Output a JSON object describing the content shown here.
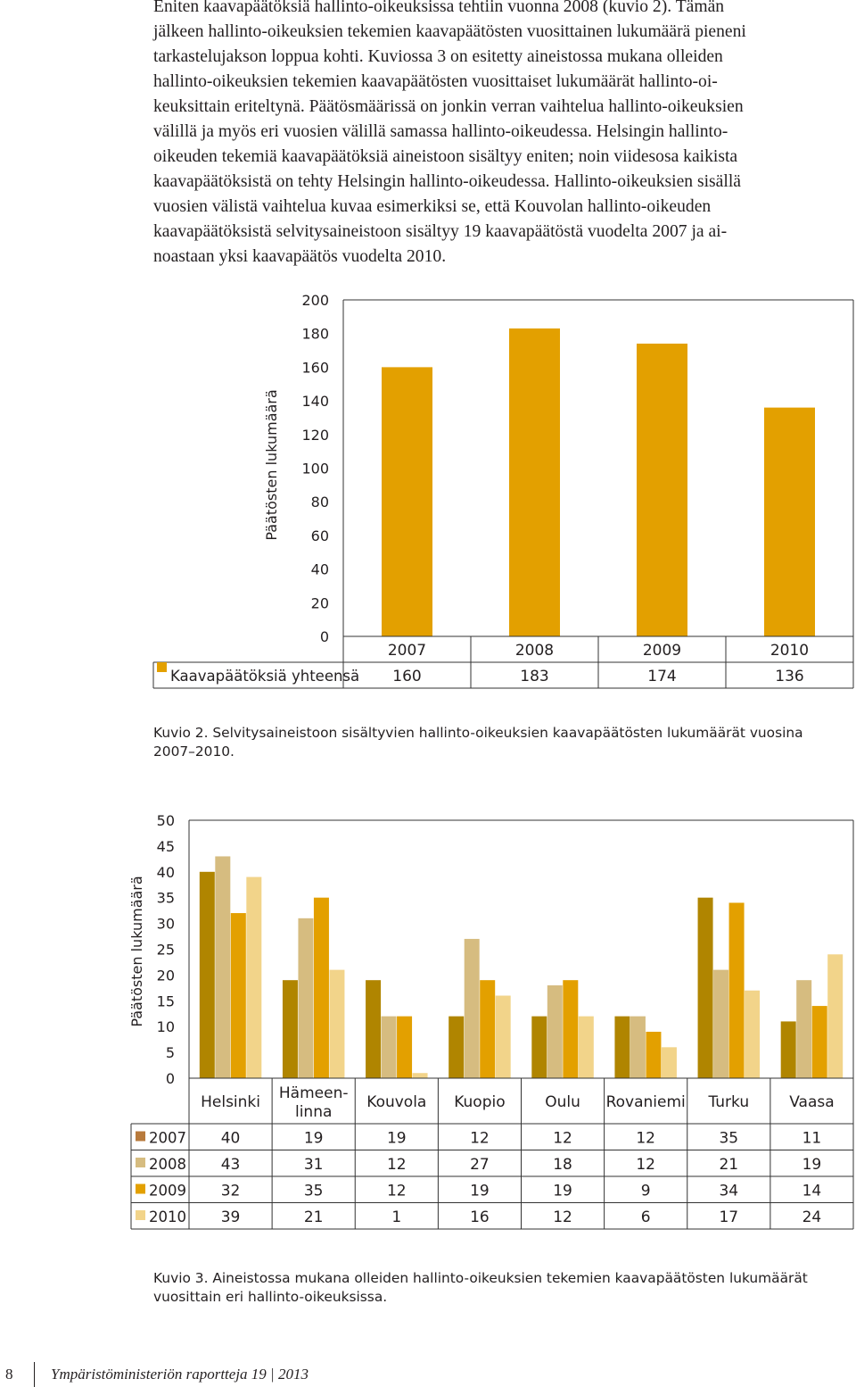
{
  "body_lines": [
    "Eniten kaavapäätöksiä hallinto-oikeuksissa tehtiin vuonna 2008 (kuvio 2). Tämän",
    "jälkeen hallinto-oikeuksien tekemien kaavapäätösten vuosittainen lukumäärä pieneni",
    "tarkastelujakson loppua kohti. Kuviossa 3 on esitetty aineistossa mukana olleiden",
    "hallinto-oikeuksien tekemien kaavapäätösten vuosittaiset lukumäärät hallinto-oi-",
    "keuksittain eriteltynä. Päätösmäärissä on jonkin verran vaihtelua hallinto-oikeuksien",
    "välillä ja myös eri vuosien välillä samassa hallinto-oikeudessa. Helsingin hallinto-",
    "oikeuden tekemiä kaavapäätöksiä aineistoon sisältyy eniten; noin viidesosa kaikista",
    "kaavapäätöksistä on tehty Helsingin hallinto-oikeudessa. Hallinto-oikeuksien sisällä",
    "vuosien välistä vaihtelua kuvaa esimerkiksi se, että Kouvolan hallinto-oikeuden",
    "kaavapäätöksistä selvitysaineistoon sisältyy 19 kaavapäätöstä vuodelta 2007 ja ai-",
    "noastaan yksi kaavapäätös vuodelta 2010."
  ],
  "chart_data": [
    {
      "type": "bar",
      "ylabel": "Päätösten lukumäärä",
      "ylim": [
        0,
        200
      ],
      "yticks": [
        0,
        20,
        40,
        60,
        80,
        100,
        120,
        140,
        160,
        180,
        200
      ],
      "categories": [
        "2007",
        "2008",
        "2009",
        "2010"
      ],
      "series": [
        {
          "name": "Kaavapäätöksiä yhteensä",
          "values": [
            160,
            183,
            174,
            136
          ],
          "color": "#e3a000"
        }
      ],
      "data_table": true,
      "grid": false
    },
    {
      "type": "bar",
      "ylabel": "Päätösten lukumäärä",
      "ylim": [
        0,
        50
      ],
      "yticks": [
        0,
        5,
        10,
        15,
        20,
        25,
        30,
        35,
        40,
        45,
        50
      ],
      "categories": [
        "Helsinki",
        "Hämeen-\nlinna",
        "Kouvola",
        "Kuopio",
        "Oulu",
        "Rovaniemi",
        "Turku",
        "Vaasa"
      ],
      "series": [
        {
          "name": "2007",
          "values": [
            40,
            19,
            19,
            12,
            12,
            12,
            35,
            11
          ],
          "color": "#b08500"
        },
        {
          "name": "2008",
          "values": [
            43,
            31,
            12,
            27,
            18,
            12,
            21,
            19
          ],
          "color": "#d6bc80"
        },
        {
          "name": "2009",
          "values": [
            32,
            35,
            12,
            19,
            19,
            9,
            34,
            14
          ],
          "color": "#e3a000"
        },
        {
          "name": "2010",
          "values": [
            39,
            21,
            1,
            16,
            12,
            6,
            17,
            24
          ],
          "color": "#f2d48a"
        }
      ],
      "legend_swatch_2007": "#b87a3c",
      "data_table": true,
      "grid": false
    }
  ],
  "captions": {
    "fig2": "Kuvio 2. Selvitysaineistoon sisältyvien hallinto-oikeuksien kaavapäätösten lukumäärät vuosina 2007–2010.",
    "fig3": "Kuvio 3. Aineistossa mukana olleiden hallinto-oikeuksien tekemien kaavapäätösten lukumäärät vuosittain eri hallinto-oikeuksissa."
  },
  "footer": {
    "page_number": "8",
    "publication": "Ympäristöministeriön raportteja 19 | 2013"
  }
}
